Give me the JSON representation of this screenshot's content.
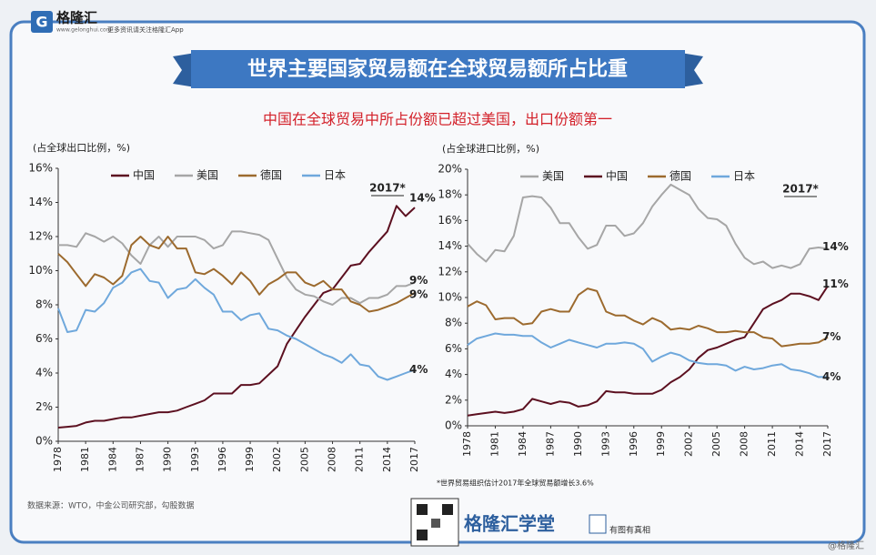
{
  "header": {
    "logo": "格隆汇",
    "url": "www.gelonghui.com",
    "tagline": "更多资讯请关注格隆汇App",
    "title": "世界主要国家贸易额在全球贸易额所占比重",
    "subtitle": "中国在全球贸易中所占份额已超过美国，出口份额第一"
  },
  "chart_data": [
    {
      "type": "line",
      "y_label": "(占全球出口比例，%)",
      "annotation": "2017*",
      "x": [
        1978,
        1979,
        1980,
        1981,
        1982,
        1983,
        1984,
        1985,
        1986,
        1987,
        1988,
        1989,
        1990,
        1991,
        1992,
        1993,
        1994,
        1995,
        1996,
        1997,
        1998,
        1999,
        2000,
        2001,
        2002,
        2003,
        2004,
        2005,
        2006,
        2007,
        2008,
        2009,
        2010,
        2011,
        2012,
        2013,
        2014,
        2015,
        2016,
        2017
      ],
      "xlim": [
        1978,
        2017
      ],
      "xticks": [
        1978,
        1981,
        1984,
        1987,
        1990,
        1993,
        1996,
        1999,
        2002,
        2005,
        2008,
        2011,
        2014,
        2017
      ],
      "ylim": [
        0,
        16
      ],
      "yticks": [
        {
          "value": 0,
          "label": "0%"
        },
        {
          "value": 2,
          "label": "2%"
        },
        {
          "value": 4,
          "label": "4%"
        },
        {
          "value": 6,
          "label": "6%"
        },
        {
          "value": 8,
          "label": "8%"
        },
        {
          "value": 10,
          "label": "10%"
        },
        {
          "value": 12,
          "label": "12%"
        },
        {
          "value": 14,
          "label": "14%"
        },
        {
          "value": 16,
          "label": "16%"
        }
      ],
      "grid": false,
      "series": [
        {
          "name": "中国",
          "color": "#5c1020",
          "end_label": "14%",
          "values": [
            0.8,
            0.85,
            0.9,
            1.1,
            1.2,
            1.2,
            1.3,
            1.4,
            1.4,
            1.5,
            1.6,
            1.7,
            1.7,
            1.8,
            2.0,
            2.2,
            2.4,
            2.8,
            2.8,
            2.8,
            3.3,
            3.3,
            3.4,
            3.9,
            4.4,
            5.7,
            6.5,
            7.3,
            8.0,
            8.7,
            8.9,
            9.6,
            10.3,
            10.4,
            11.1,
            11.7,
            12.3,
            13.8,
            13.2,
            13.7
          ]
        },
        {
          "name": "美国",
          "color": "#a6a6a6",
          "end_label": "9%",
          "values": [
            11.5,
            11.5,
            11.4,
            12.2,
            12.0,
            11.7,
            12.0,
            11.6,
            10.9,
            10.4,
            11.5,
            12.0,
            11.4,
            12.0,
            12.0,
            12.0,
            11.8,
            11.3,
            11.5,
            12.3,
            12.3,
            12.2,
            12.1,
            11.8,
            10.7,
            9.6,
            8.9,
            8.6,
            8.5,
            8.2,
            8.0,
            8.4,
            8.4,
            8.1,
            8.4,
            8.4,
            8.6,
            9.1,
            9.1,
            9.3
          ]
        },
        {
          "name": "德国",
          "color": "#9c6a2e",
          "end_label": "9%",
          "values": [
            11.0,
            10.5,
            9.8,
            9.1,
            9.8,
            9.6,
            9.2,
            9.7,
            11.5,
            12.0,
            11.5,
            11.3,
            12.0,
            11.3,
            11.3,
            9.9,
            9.8,
            10.1,
            9.7,
            9.2,
            9.9,
            9.4,
            8.6,
            9.2,
            9.5,
            9.9,
            9.9,
            9.3,
            9.1,
            9.4,
            8.9,
            8.9,
            8.2,
            8.0,
            7.6,
            7.7,
            7.9,
            8.1,
            8.4,
            8.7
          ]
        },
        {
          "name": "日本",
          "color": "#6fa8dc",
          "end_label": "4%",
          "values": [
            7.8,
            6.4,
            6.5,
            7.7,
            7.6,
            8.1,
            9.0,
            9.3,
            9.9,
            10.1,
            9.4,
            9.3,
            8.4,
            8.9,
            9.0,
            9.5,
            9.0,
            8.6,
            7.6,
            7.6,
            7.1,
            7.4,
            7.5,
            6.6,
            6.5,
            6.2,
            6.0,
            5.7,
            5.4,
            5.1,
            4.9,
            4.6,
            5.1,
            4.5,
            4.4,
            3.8,
            3.6,
            3.8,
            4.0,
            4.2
          ]
        }
      ]
    },
    {
      "type": "line",
      "y_label": "(占全球进口比例，%)",
      "annotation": "2017*",
      "note": "*世界贸易组织估计2017年全球贸易额增长3.6%",
      "x": [
        1978,
        1979,
        1980,
        1981,
        1982,
        1983,
        1984,
        1985,
        1986,
        1987,
        1988,
        1989,
        1990,
        1991,
        1992,
        1993,
        1994,
        1995,
        1996,
        1997,
        1998,
        1999,
        2000,
        2001,
        2002,
        2003,
        2004,
        2005,
        2006,
        2007,
        2008,
        2009,
        2010,
        2011,
        2012,
        2013,
        2014,
        2015,
        2016,
        2017
      ],
      "xlim": [
        1978,
        2017
      ],
      "xticks": [
        1978,
        1981,
        1984,
        1987,
        1990,
        1993,
        1996,
        1999,
        2002,
        2005,
        2008,
        2011,
        2014,
        2017
      ],
      "ylim": [
        0,
        20
      ],
      "yticks": [
        {
          "value": 0,
          "label": "0%"
        },
        {
          "value": 2,
          "label": "2%"
        },
        {
          "value": 4,
          "label": "4%"
        },
        {
          "value": 6,
          "label": "6%"
        },
        {
          "value": 8,
          "label": "8%"
        },
        {
          "value": 10,
          "label": "10%"
        },
        {
          "value": 12,
          "label": "12%"
        },
        {
          "value": 14,
          "label": "14%"
        },
        {
          "value": 16,
          "label": "16%"
        },
        {
          "value": 18,
          "label": "18%"
        },
        {
          "value": 20,
          "label": "20%"
        }
      ],
      "grid": false,
      "series": [
        {
          "name": "美国",
          "color": "#a6a6a6",
          "end_label": "14%",
          "values": [
            14.2,
            13.4,
            12.8,
            13.7,
            13.6,
            14.8,
            17.8,
            17.9,
            17.8,
            17.0,
            15.8,
            15.8,
            14.7,
            13.8,
            14.1,
            15.6,
            15.6,
            14.8,
            15.0,
            15.8,
            17.1,
            18.0,
            18.8,
            18.4,
            18.0,
            16.9,
            16.2,
            16.1,
            15.6,
            14.2,
            13.1,
            12.6,
            12.8,
            12.3,
            12.5,
            12.3,
            12.6,
            13.8,
            13.9,
            13.8
          ]
        },
        {
          "name": "中国",
          "color": "#5c1020",
          "end_label": "11%",
          "values": [
            0.8,
            0.9,
            1.0,
            1.1,
            1.0,
            1.1,
            1.3,
            2.1,
            1.9,
            1.7,
            1.9,
            1.8,
            1.5,
            1.6,
            1.9,
            2.7,
            2.6,
            2.6,
            2.5,
            2.5,
            2.5,
            2.8,
            3.4,
            3.8,
            4.4,
            5.3,
            5.9,
            6.1,
            6.4,
            6.7,
            6.9,
            8.0,
            9.1,
            9.5,
            9.8,
            10.3,
            10.3,
            10.1,
            9.8,
            10.9
          ]
        },
        {
          "name": "德国",
          "color": "#9c6a2e",
          "end_label": "7%",
          "values": [
            9.3,
            9.7,
            9.4,
            8.3,
            8.4,
            8.4,
            7.9,
            8.0,
            8.9,
            9.1,
            8.9,
            8.9,
            10.2,
            10.7,
            10.5,
            8.9,
            8.6,
            8.6,
            8.2,
            7.9,
            8.4,
            8.1,
            7.5,
            7.6,
            7.5,
            7.8,
            7.6,
            7.3,
            7.3,
            7.4,
            7.3,
            7.3,
            6.9,
            6.8,
            6.2,
            6.3,
            6.4,
            6.4,
            6.5,
            6.9
          ]
        },
        {
          "name": "日本",
          "color": "#6fa8dc",
          "end_label": "4%",
          "values": [
            6.3,
            6.8,
            7.0,
            7.2,
            7.1,
            7.1,
            7.0,
            7.0,
            6.5,
            6.1,
            6.4,
            6.7,
            6.5,
            6.3,
            6.1,
            6.4,
            6.4,
            6.5,
            6.4,
            6.0,
            5.0,
            5.4,
            5.7,
            5.5,
            5.1,
            4.9,
            4.8,
            4.8,
            4.7,
            4.3,
            4.6,
            4.4,
            4.5,
            4.7,
            4.8,
            4.4,
            4.3,
            4.1,
            3.8,
            3.8
          ]
        }
      ]
    }
  ],
  "footer": {
    "source": "数据来源：WTO，中金公司研究部，勾股数据",
    "brand": "格隆汇学堂",
    "slogan": "有图有真相",
    "watermark": "@格隆汇"
  }
}
